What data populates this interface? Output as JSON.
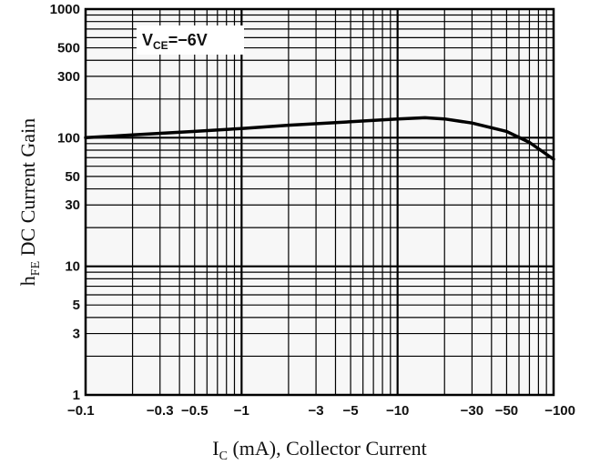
{
  "chart_data": {
    "type": "line",
    "x_scale": "log",
    "y_scale": "log",
    "xlim": [
      -0.1,
      -100
    ],
    "ylim": [
      1,
      1000
    ],
    "xlabel": {
      "main": "I",
      "sub": "C",
      "rest": " (mA), Collector Current"
    },
    "ylabel": {
      "main": "h",
      "sub": "FE",
      "rest": " DC Current Gain"
    },
    "annotation": {
      "main": "V",
      "sub": "CE",
      "rest": "=−6V"
    },
    "x_ticks": [
      {
        "value": -0.1,
        "label": "−0.1"
      },
      {
        "value": -0.3,
        "label": "−0.3"
      },
      {
        "value": -0.5,
        "label": "−0.5"
      },
      {
        "value": -1,
        "label": "−1"
      },
      {
        "value": -3,
        "label": "−3"
      },
      {
        "value": -5,
        "label": "−5"
      },
      {
        "value": -10,
        "label": "−10"
      },
      {
        "value": -30,
        "label": "−30"
      },
      {
        "value": -50,
        "label": "−50"
      },
      {
        "value": -100,
        "label": "−100"
      }
    ],
    "y_ticks": [
      {
        "value": 1,
        "label": "1"
      },
      {
        "value": 3,
        "label": "3"
      },
      {
        "value": 5,
        "label": "5"
      },
      {
        "value": 10,
        "label": "10"
      },
      {
        "value": 30,
        "label": "30"
      },
      {
        "value": 50,
        "label": "50"
      },
      {
        "value": 100,
        "label": "100"
      },
      {
        "value": 300,
        "label": "300"
      },
      {
        "value": 500,
        "label": "500"
      },
      {
        "value": 1000,
        "label": "1000"
      }
    ],
    "grid": true,
    "series": [
      {
        "x": [
          -0.1,
          -0.2,
          -0.5,
          -1,
          -2,
          -5,
          -10,
          -15,
          -20,
          -30,
          -50,
          -70,
          -100
        ],
        "y": [
          100,
          105,
          112,
          118,
          125,
          133,
          140,
          143,
          140,
          130,
          112,
          92,
          68
        ]
      }
    ]
  }
}
